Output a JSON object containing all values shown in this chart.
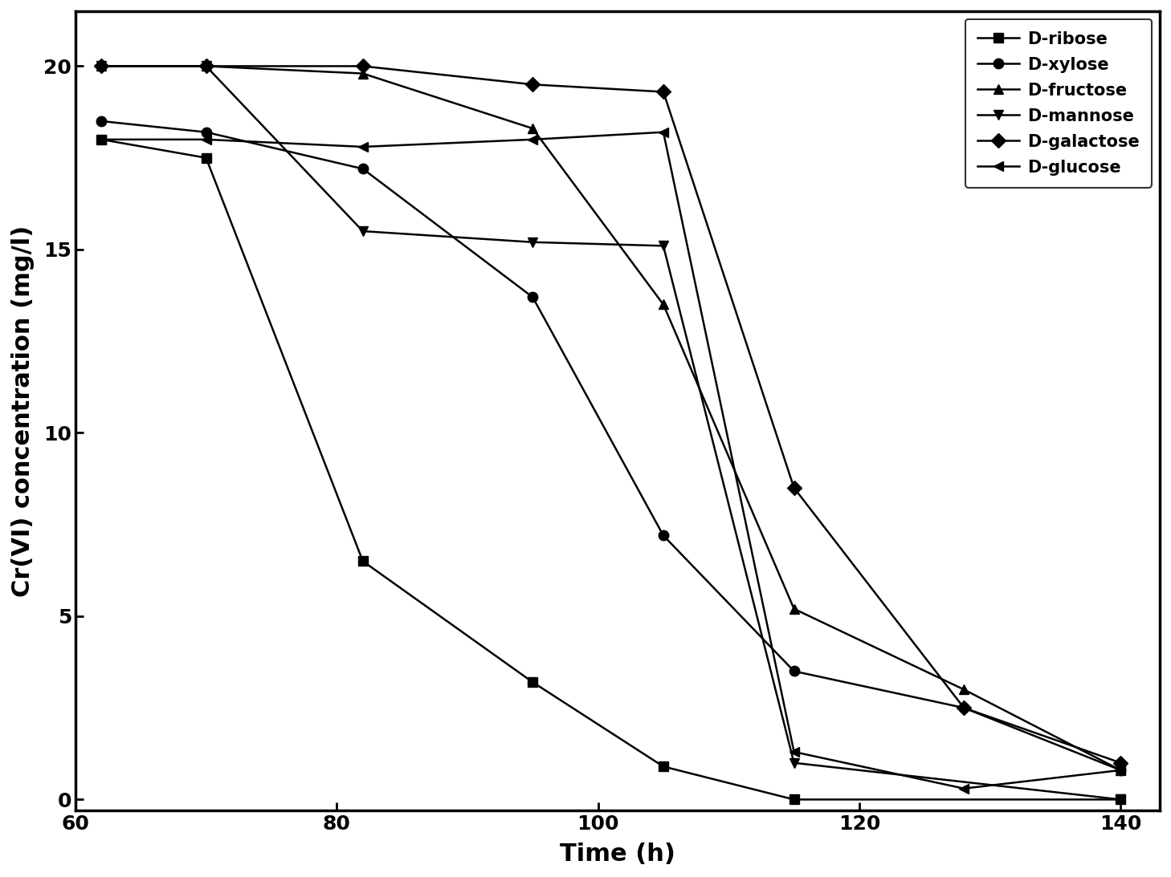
{
  "series": [
    {
      "name": "D-ribose",
      "x": [
        62,
        70,
        82,
        95,
        105,
        115,
        140
      ],
      "y": [
        18.0,
        17.5,
        6.5,
        3.2,
        0.9,
        0.0,
        0.0
      ],
      "marker": "s",
      "linestyle": "-",
      "linewidth": 1.8,
      "markersize": 9
    },
    {
      "name": "D-xylose",
      "x": [
        62,
        70,
        82,
        95,
        105,
        115,
        128,
        140
      ],
      "y": [
        18.5,
        18.2,
        17.2,
        13.7,
        7.2,
        3.5,
        2.5,
        0.8
      ],
      "marker": "o",
      "linestyle": "-",
      "linewidth": 1.8,
      "markersize": 9
    },
    {
      "name": "D-fructose",
      "x": [
        62,
        70,
        82,
        95,
        105,
        115,
        128,
        140
      ],
      "y": [
        20.0,
        20.0,
        19.8,
        18.3,
        13.5,
        5.2,
        3.0,
        0.8
      ],
      "marker": "^",
      "linestyle": "-",
      "linewidth": 1.8,
      "markersize": 9
    },
    {
      "name": "D-mannose",
      "x": [
        62,
        70,
        82,
        95,
        105,
        115,
        140
      ],
      "y": [
        20.0,
        20.0,
        15.5,
        15.2,
        15.1,
        1.0,
        0.0
      ],
      "marker": "v",
      "linestyle": "-",
      "linewidth": 1.8,
      "markersize": 9
    },
    {
      "name": "D-galactose",
      "x": [
        62,
        70,
        82,
        95,
        105,
        115,
        128,
        140
      ],
      "y": [
        20.0,
        20.0,
        20.0,
        19.5,
        19.3,
        8.5,
        2.5,
        1.0
      ],
      "marker": "D",
      "linestyle": "-",
      "linewidth": 1.8,
      "markersize": 9
    },
    {
      "name": "D-glucose",
      "x": [
        62,
        70,
        82,
        95,
        105,
        115,
        128,
        140
      ],
      "y": [
        18.0,
        18.0,
        17.8,
        18.0,
        18.2,
        1.3,
        0.3,
        0.8
      ],
      "marker": "<",
      "linestyle": "-",
      "linewidth": 1.8,
      "markersize": 9
    }
  ],
  "xlabel": "Time (h)",
  "ylabel": "Cr(VI) concentration (mg/l)",
  "xlim": [
    60,
    143
  ],
  "ylim": [
    -0.3,
    21.5
  ],
  "xticks": [
    60,
    80,
    100,
    120,
    140
  ],
  "yticks": [
    0,
    5,
    10,
    15,
    20
  ],
  "legend_loc": "upper right",
  "background_color": "#ffffff",
  "color": "#000000",
  "tick_fontsize": 18,
  "label_fontsize": 22,
  "legend_fontsize": 15
}
